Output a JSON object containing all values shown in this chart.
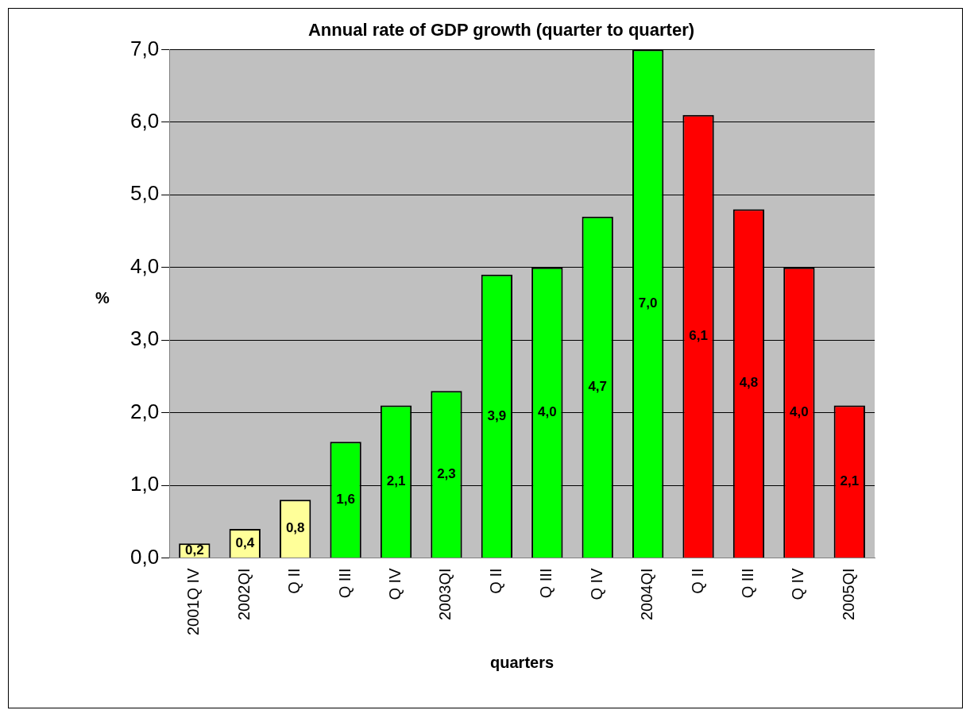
{
  "chart_data": {
    "type": "bar",
    "title": "Annual rate of GDP growth (quarter to quarter)",
    "xlabel": "quarters",
    "ylabel": "%",
    "categories": [
      "2001Q IV",
      "2002QI",
      "Q II",
      "Q III",
      "Q IV",
      "2003QI",
      "Q II",
      "Q III",
      "Q IV",
      "2004QI",
      "Q II",
      "Q III",
      "Q IV",
      "2005QI"
    ],
    "values": [
      0.2,
      0.4,
      0.8,
      1.6,
      2.1,
      2.3,
      3.9,
      4.0,
      4.7,
      7.0,
      6.1,
      4.8,
      4.0,
      2.1
    ],
    "colors": [
      "#ffff99",
      "#ffff99",
      "#ffff99",
      "#00ff00",
      "#00ff00",
      "#00ff00",
      "#00ff00",
      "#00ff00",
      "#00ff00",
      "#00ff00",
      "#ff0000",
      "#ff0000",
      "#ff0000",
      "#ff0000"
    ],
    "value_labels": [
      "0,2",
      "0,4",
      "0,8",
      "1,6",
      "2,1",
      "2,3",
      "3,9",
      "4,0",
      "4,7",
      "7,0",
      "6,1",
      "4,8",
      "4,0",
      "2,1"
    ],
    "ylim": [
      0,
      7
    ],
    "yticks": [
      {
        "value": 0,
        "label": "0,0"
      },
      {
        "value": 1,
        "label": "1,0"
      },
      {
        "value": 2,
        "label": "2,0"
      },
      {
        "value": 3,
        "label": "3,0"
      },
      {
        "value": 4,
        "label": "4,0"
      },
      {
        "value": 5,
        "label": "5,0"
      },
      {
        "value": 6,
        "label": "6,0"
      },
      {
        "value": 7,
        "label": "7,0"
      }
    ],
    "grid": "y",
    "legend": false
  }
}
